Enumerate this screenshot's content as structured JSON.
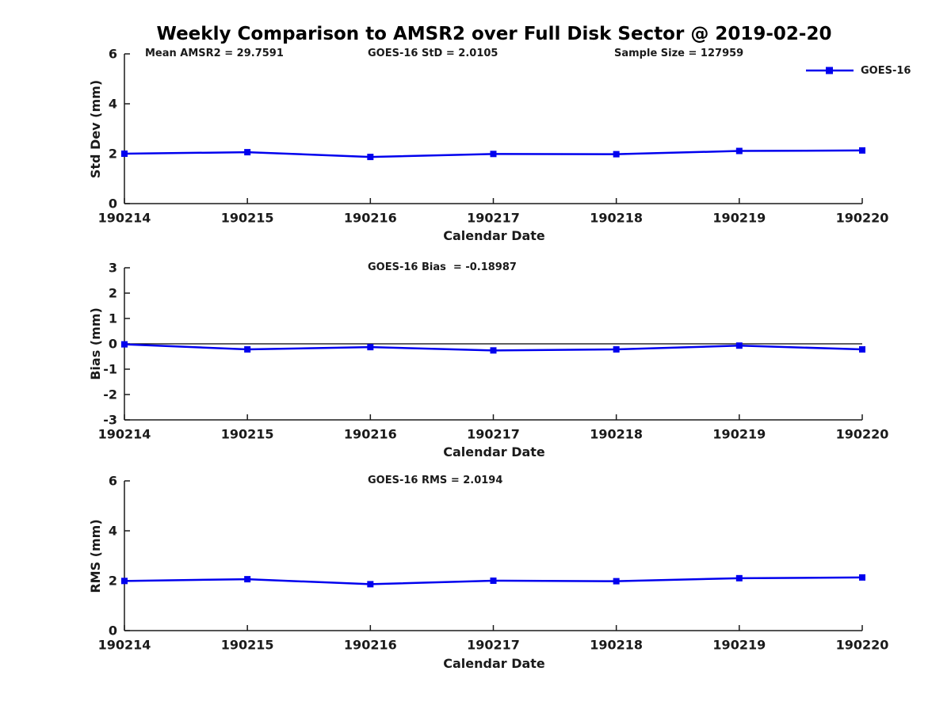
{
  "figure": {
    "title": "Weekly Comparison to AMSR2 over Full Disk Sector @ 2019-02-20",
    "background": "#ffffff",
    "line_color": "#0000ee",
    "axis_color": "#1a1a1a",
    "legend": {
      "label": "GOES-16",
      "marker": "filled-square",
      "position": "top-right"
    }
  },
  "chart_data": [
    {
      "type": "line",
      "id": "stddev",
      "ylabel": "Std Dev (mm)",
      "xlabel": "Calendar Date",
      "categories": [
        "190214",
        "190215",
        "190216",
        "190217",
        "190218",
        "190219",
        "190220"
      ],
      "series": [
        {
          "name": "GOES-16",
          "color": "#0000ee",
          "marker": "square",
          "values": [
            2.0,
            2.06,
            1.87,
            1.99,
            1.98,
            2.11,
            2.13
          ]
        }
      ],
      "ylim": [
        0,
        6
      ],
      "yticks": [
        0,
        2,
        4,
        6
      ],
      "grid": false,
      "legend_visible": true,
      "annotations": [
        {
          "text": "Mean AMSR2 = 29.7591"
        },
        {
          "text": "GOES-16 StD = 2.0105"
        },
        {
          "text": "Sample Size = 127959"
        }
      ]
    },
    {
      "type": "line",
      "id": "bias",
      "ylabel": "Bias (mm)",
      "xlabel": "Calendar Date",
      "categories": [
        "190214",
        "190215",
        "190216",
        "190217",
        "190218",
        "190219",
        "190220"
      ],
      "series": [
        {
          "name": "GOES-16",
          "color": "#0000ee",
          "marker": "square",
          "values": [
            -0.02,
            -0.22,
            -0.13,
            -0.26,
            -0.22,
            -0.07,
            -0.22
          ]
        }
      ],
      "ylim": [
        -3,
        3
      ],
      "yticks": [
        3,
        2,
        1,
        0,
        -1,
        -2,
        -3
      ],
      "grid": false,
      "zero_line": true,
      "legend_visible": false,
      "annotations": [
        {
          "text": "GOES-16 Bias  = -0.18987"
        }
      ]
    },
    {
      "type": "line",
      "id": "rms",
      "ylabel": "RMS (mm)",
      "xlabel": "Calendar Date",
      "categories": [
        "190214",
        "190215",
        "190216",
        "190217",
        "190218",
        "190219",
        "190220"
      ],
      "series": [
        {
          "name": "GOES-16",
          "color": "#0000ee",
          "marker": "square",
          "values": [
            1.99,
            2.06,
            1.86,
            2.0,
            1.98,
            2.1,
            2.13
          ]
        }
      ],
      "ylim": [
        0,
        6
      ],
      "yticks": [
        0,
        2,
        4,
        6
      ],
      "grid": false,
      "legend_visible": false,
      "annotations": [
        {
          "text": "GOES-16 RMS = 2.0194"
        }
      ]
    }
  ]
}
